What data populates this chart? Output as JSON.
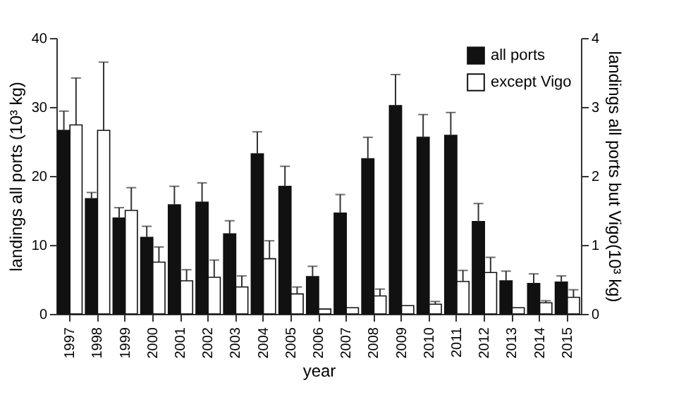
{
  "chart_data": {
    "type": "bar",
    "xlabel": "year",
    "ylabel": "landings all ports (10³ kg)",
    "y2label": "landings all ports but Vigo(10³ kg)",
    "categories": [
      "1997",
      "1998",
      "1999",
      "2000",
      "2001",
      "2002",
      "2003",
      "2004",
      "2005",
      "2006",
      "2007",
      "2008",
      "2009",
      "2010",
      "2011",
      "2012",
      "2013",
      "2014",
      "2015"
    ],
    "series": [
      {
        "name": "all ports",
        "color": "#111111",
        "values": [
          26.6,
          16.7,
          13.9,
          11.1,
          15.8,
          16.2,
          11.6,
          23.2,
          18.5,
          5.4,
          14.6,
          22.5,
          30.2,
          25.6,
          25.9,
          13.4,
          4.8,
          4.4,
          4.6
        ],
        "errors": [
          [
            26.6,
            29.4
          ],
          [
            16.7,
            17.6
          ],
          [
            13.9,
            15.4
          ],
          [
            11.1,
            12.7
          ],
          [
            15.8,
            18.5
          ],
          [
            16.2,
            19.0
          ],
          [
            11.6,
            13.5
          ],
          [
            23.2,
            26.4
          ],
          [
            18.5,
            21.4
          ],
          [
            5.4,
            6.9
          ],
          [
            14.6,
            17.3
          ],
          [
            22.5,
            25.6
          ],
          [
            30.2,
            34.7
          ],
          [
            25.6,
            28.9
          ],
          [
            25.9,
            29.2
          ],
          [
            13.4,
            16.0
          ],
          [
            4.8,
            6.2
          ],
          [
            4.4,
            5.8
          ],
          [
            4.6,
            5.5
          ]
        ]
      },
      {
        "name": "except Vigo",
        "color": "#ffffff",
        "axis": "y2",
        "values": [
          2.74,
          2.66,
          1.5,
          0.75,
          0.48,
          0.53,
          0.39,
          0.8,
          0.29,
          0.07,
          0.09,
          0.26,
          0.12,
          0.14,
          0.47,
          0.6,
          0.09,
          0.16,
          0.24
        ],
        "errors": [
          [
            2.74,
            3.42
          ],
          [
            2.66,
            3.65
          ],
          [
            1.5,
            1.83
          ],
          [
            0.75,
            0.97
          ],
          [
            0.48,
            0.64
          ],
          [
            0.53,
            0.78
          ],
          [
            0.39,
            0.55
          ],
          [
            0.8,
            1.06
          ],
          [
            0.29,
            0.39
          ],
          null,
          null,
          [
            0.26,
            0.36
          ],
          null,
          [
            0.14,
            0.18
          ],
          [
            0.47,
            0.63
          ],
          [
            0.6,
            0.82
          ],
          null,
          [
            0.16,
            0.19
          ],
          [
            0.24,
            0.35
          ]
        ]
      }
    ],
    "ylim": [
      0,
      40
    ],
    "yticks": [
      0,
      10,
      20,
      30,
      40
    ],
    "y2lim": [
      0,
      4
    ],
    "y2ticks": [
      0,
      1,
      2,
      3,
      4
    ],
    "grid": false,
    "legend": "top right"
  }
}
